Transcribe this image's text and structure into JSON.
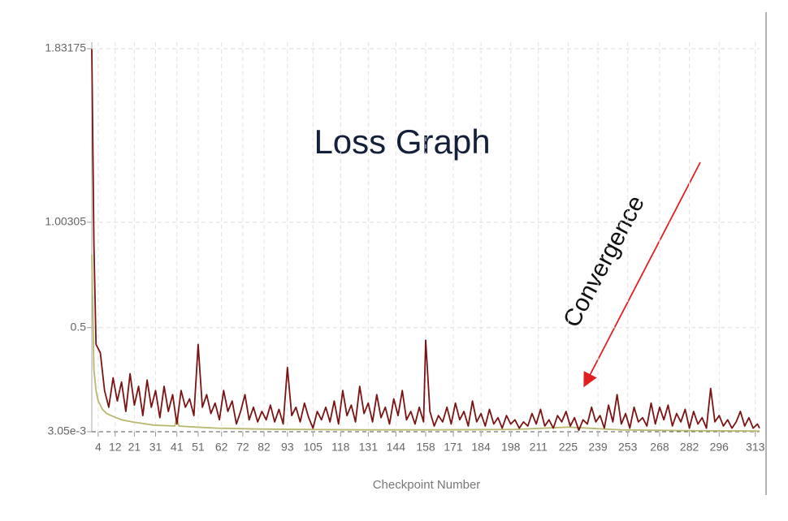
{
  "chart_data": {
    "type": "line",
    "title": "Loss Graph",
    "annotation": "Convergence",
    "x_label": "Checkpoint Number",
    "xlim": [
      1,
      315
    ],
    "xticks": [
      4,
      12,
      21,
      31,
      41,
      51,
      62,
      72,
      82,
      93,
      105,
      118,
      131,
      144,
      158,
      171,
      184,
      198,
      211,
      225,
      239,
      253,
      268,
      282,
      296,
      313
    ],
    "ylim": [
      0.00305,
      1.83175
    ],
    "yticks": [
      {
        "value": 0.00305,
        "label": "3.05e-3"
      },
      0.5,
      1.00305,
      1.83175
    ],
    "grid": true,
    "series": [
      {
        "color": "#7a1414",
        "x": [
          1,
          2,
          3,
          5,
          7,
          9,
          11,
          13,
          15,
          17,
          19,
          21,
          23,
          25,
          27,
          29,
          31,
          33,
          35,
          37,
          39,
          41,
          43,
          45,
          47,
          49,
          51,
          53,
          55,
          57,
          59,
          61,
          63,
          65,
          67,
          69,
          71,
          73,
          75,
          77,
          79,
          81,
          83,
          85,
          87,
          89,
          91,
          93,
          95,
          97,
          99,
          101,
          103,
          105,
          107,
          109,
          111,
          113,
          115,
          117,
          119,
          121,
          123,
          125,
          127,
          129,
          131,
          133,
          135,
          137,
          139,
          141,
          143,
          145,
          147,
          149,
          151,
          153,
          155,
          157,
          158,
          160,
          162,
          164,
          166,
          168,
          170,
          172,
          174,
          176,
          178,
          180,
          182,
          184,
          186,
          188,
          190,
          192,
          194,
          196,
          198,
          200,
          202,
          204,
          206,
          208,
          210,
          212,
          214,
          216,
          218,
          220,
          222,
          224,
          226,
          228,
          230,
          232,
          234,
          236,
          238,
          240,
          242,
          244,
          246,
          248,
          250,
          252,
          254,
          256,
          258,
          260,
          262,
          264,
          266,
          268,
          270,
          272,
          274,
          276,
          278,
          280,
          282,
          284,
          286,
          288,
          290,
          292,
          294,
          296,
          298,
          300,
          302,
          304,
          306,
          308,
          310,
          312,
          314,
          315
        ],
        "values": [
          1.83,
          0.9,
          0.42,
          0.38,
          0.2,
          0.12,
          0.26,
          0.15,
          0.24,
          0.1,
          0.28,
          0.13,
          0.22,
          0.08,
          0.25,
          0.12,
          0.2,
          0.07,
          0.22,
          0.1,
          0.18,
          0.04,
          0.2,
          0.12,
          0.16,
          0.08,
          0.42,
          0.12,
          0.18,
          0.09,
          0.14,
          0.06,
          0.2,
          0.1,
          0.15,
          0.04,
          0.1,
          0.18,
          0.06,
          0.12,
          0.05,
          0.1,
          0.06,
          0.13,
          0.05,
          0.11,
          0.04,
          0.31,
          0.08,
          0.12,
          0.05,
          0.14,
          0.07,
          0.02,
          0.1,
          0.06,
          0.12,
          0.05,
          0.15,
          0.04,
          0.2,
          0.08,
          0.13,
          0.05,
          0.22,
          0.09,
          0.14,
          0.05,
          0.18,
          0.07,
          0.12,
          0.04,
          0.16,
          0.08,
          0.2,
          0.06,
          0.1,
          0.04,
          0.12,
          0.05,
          0.44,
          0.1,
          0.03,
          0.08,
          0.05,
          0.12,
          0.04,
          0.14,
          0.06,
          0.1,
          0.03,
          0.15,
          0.05,
          0.09,
          0.03,
          0.11,
          0.04,
          0.07,
          0.02,
          0.08,
          0.04,
          0.06,
          0.02,
          0.05,
          0.03,
          0.09,
          0.04,
          0.11,
          0.03,
          0.06,
          0.02,
          0.08,
          0.05,
          0.1,
          0.03,
          0.07,
          0.01,
          0.06,
          0.04,
          0.12,
          0.05,
          0.08,
          0.02,
          0.13,
          0.05,
          0.18,
          0.04,
          0.09,
          0.02,
          0.12,
          0.05,
          0.07,
          0.03,
          0.14,
          0.04,
          0.12,
          0.06,
          0.13,
          0.03,
          0.09,
          0.05,
          0.11,
          0.02,
          0.1,
          0.04,
          0.07,
          0.02,
          0.21,
          0.05,
          0.08,
          0.03,
          0.06,
          0.02,
          0.05,
          0.1,
          0.03,
          0.07,
          0.02,
          0.04,
          0.02
        ]
      },
      {
        "color": "#b8b870",
        "x": [
          1,
          2,
          3,
          4,
          6,
          8,
          10,
          15,
          20,
          30,
          40,
          41,
          42,
          50,
          60,
          80,
          100,
          130,
          160,
          200,
          225,
          250,
          280,
          315
        ],
        "values": [
          0.85,
          0.3,
          0.2,
          0.15,
          0.11,
          0.09,
          0.08,
          0.06,
          0.05,
          0.035,
          0.03,
          0.07,
          0.03,
          0.025,
          0.02,
          0.016,
          0.014,
          0.012,
          0.012,
          0.014,
          0.025,
          0.012,
          0.008,
          0.006
        ]
      }
    ]
  }
}
